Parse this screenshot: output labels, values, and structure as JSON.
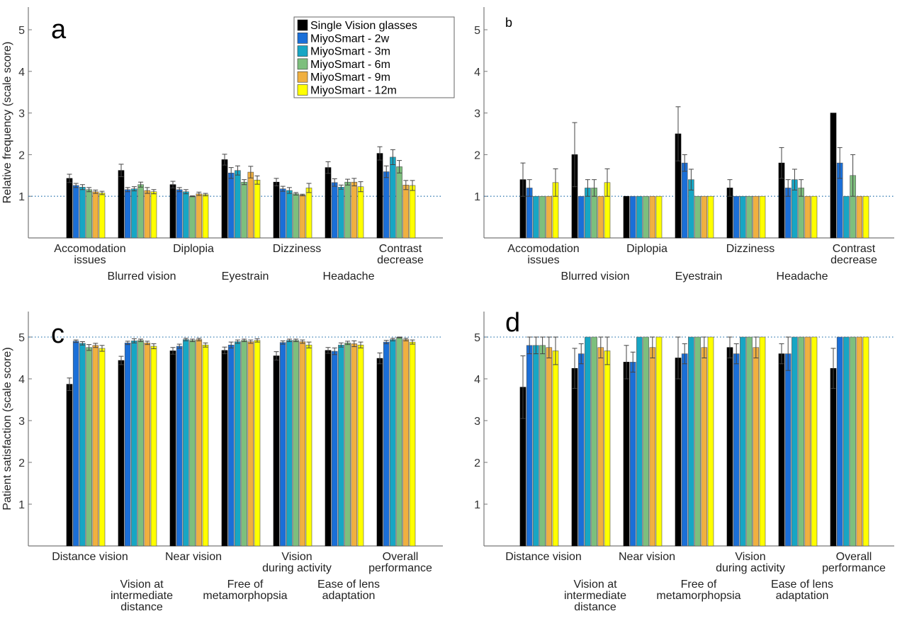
{
  "colors": [
    "#000000",
    "#1a6fd8",
    "#17a6c4",
    "#7dbf7d",
    "#f0b040",
    "#ffff00"
  ],
  "reference_line_color": "#3a7fb5",
  "chart_data": [
    {
      "type": "bar",
      "panel_label": "a",
      "ylabel": "Relative frequency (scale score)",
      "ylim": [
        0,
        5.5
      ],
      "yticks": [
        1,
        2,
        3,
        4,
        5
      ],
      "reference_line": 1,
      "legend": "top-right",
      "categories": [
        "Accomodation\nissues",
        "Blurred vision",
        "Diplopia",
        "Eyestrain",
        "Dizziness",
        "Headache",
        "Contrast\ndecrease"
      ],
      "series": [
        {
          "name": "Single Vision glasses",
          "values": [
            1.43,
            1.62,
            1.28,
            1.88,
            1.34,
            1.69,
            2.03
          ],
          "errors": [
            0.1,
            0.15,
            0.08,
            0.13,
            0.09,
            0.14,
            0.16
          ]
        },
        {
          "name": "MiyoSmart - 2w",
          "values": [
            1.26,
            1.16,
            1.16,
            1.56,
            1.18,
            1.33,
            1.59
          ],
          "errors": [
            0.05,
            0.05,
            0.05,
            0.13,
            0.06,
            0.09,
            0.14
          ]
        },
        {
          "name": "MiyoSmart - 3m",
          "values": [
            1.22,
            1.18,
            1.11,
            1.62,
            1.14,
            1.22,
            1.94
          ],
          "errors": [
            0.06,
            0.05,
            0.05,
            0.11,
            0.07,
            0.05,
            0.18
          ]
        },
        {
          "name": "MiyoSmart - 6m",
          "values": [
            1.16,
            1.28,
            1.0,
            1.34,
            1.06,
            1.34,
            1.71
          ],
          "errors": [
            0.05,
            0.06,
            0.01,
            0.06,
            0.03,
            0.07,
            0.15
          ]
        },
        {
          "name": "MiyoSmart - 9m",
          "values": [
            1.11,
            1.14,
            1.06,
            1.58,
            1.03,
            1.34,
            1.27
          ],
          "errors": [
            0.04,
            0.07,
            0.04,
            0.14,
            0.02,
            0.09,
            0.11
          ]
        },
        {
          "name": "MiyoSmart - 12m",
          "values": [
            1.08,
            1.11,
            1.04,
            1.39,
            1.2,
            1.23,
            1.26
          ],
          "errors": [
            0.04,
            0.05,
            0.03,
            0.1,
            0.11,
            0.12,
            0.12
          ]
        }
      ]
    },
    {
      "type": "bar",
      "panel_label": "b",
      "ylim": [
        0,
        5.5
      ],
      "yticks": [
        1,
        2,
        3,
        4,
        5
      ],
      "reference_line": 1,
      "categories": [
        "Accomodation\nissues",
        "Blurred vision",
        "Diplopia",
        "Eyestrain",
        "Dizziness",
        "Headache",
        "Contrast\ndecrease"
      ],
      "series": [
        {
          "name": "Single Vision glasses",
          "values": [
            1.4,
            2.0,
            1.0,
            2.5,
            1.2,
            1.8,
            3.0
          ],
          "errors": [
            0.4,
            0.77,
            0,
            0.65,
            0.2,
            0.37,
            0
          ]
        },
        {
          "name": "MiyoSmart - 2w",
          "values": [
            1.2,
            1.0,
            1.0,
            1.8,
            1.0,
            1.2,
            1.8
          ],
          "errors": [
            0.2,
            0,
            0,
            0.2,
            0,
            0.2,
            0.37
          ]
        },
        {
          "name": "MiyoSmart - 3m",
          "values": [
            1.0,
            1.2,
            1.0,
            1.4,
            1.0,
            1.4,
            1.0
          ],
          "errors": [
            0,
            0.2,
            0,
            0.25,
            0,
            0.25,
            0
          ]
        },
        {
          "name": "MiyoSmart - 6m",
          "values": [
            1.0,
            1.2,
            1.0,
            1.0,
            1.0,
            1.2,
            1.5
          ],
          "errors": [
            0,
            0.2,
            0,
            0,
            0,
            0.2,
            0.5
          ]
        },
        {
          "name": "MiyoSmart - 9m",
          "values": [
            1.0,
            1.0,
            1.0,
            1.0,
            1.0,
            1.0,
            1.0
          ],
          "errors": [
            0,
            0,
            0,
            0,
            0,
            0,
            0
          ]
        },
        {
          "name": "MiyoSmart - 12m",
          "values": [
            1.33,
            1.33,
            1.0,
            1.0,
            1.0,
            1.0,
            1.0
          ],
          "errors": [
            0.33,
            0.33,
            0,
            0,
            0,
            0,
            0
          ]
        }
      ]
    },
    {
      "type": "bar",
      "panel_label": "c",
      "ylabel": "Patient satisfaction (scale score)",
      "ylim": [
        0,
        5.5
      ],
      "yticks": [
        1,
        2,
        3,
        4,
        5
      ],
      "reference_line": 5,
      "categories": [
        "Distance vision",
        "Vision at\nintermediate\ndistance",
        "Near vision",
        "Free of\nmetamorphopsia",
        "Vision\nduring activity",
        "Ease of lens\nadaptation",
        "Overall\nperformance"
      ],
      "series": [
        {
          "name": "Single Vision glasses",
          "values": [
            3.87,
            4.44,
            4.67,
            4.68,
            4.55,
            4.68,
            4.49
          ],
          "errors": [
            0.15,
            0.1,
            0.08,
            0.08,
            0.1,
            0.07,
            0.13
          ]
        },
        {
          "name": "MiyoSmart - 2w",
          "values": [
            4.9,
            4.86,
            4.78,
            4.81,
            4.87,
            4.66,
            4.88
          ],
          "errors": [
            0.03,
            0.04,
            0.05,
            0.07,
            0.04,
            0.08,
            0.04
          ]
        },
        {
          "name": "MiyoSmart - 3m",
          "values": [
            4.85,
            4.91,
            4.94,
            4.89,
            4.92,
            4.81,
            4.94
          ],
          "errors": [
            0.04,
            0.05,
            0.03,
            0.04,
            0.03,
            0.05,
            0.03
          ]
        },
        {
          "name": "MiyoSmart - 6m",
          "values": [
            4.75,
            4.92,
            4.92,
            4.92,
            4.92,
            4.86,
            4.99
          ],
          "errors": [
            0.07,
            0.03,
            0.03,
            0.03,
            0.03,
            0.04,
            0.01
          ]
        },
        {
          "name": "MiyoSmart - 9m",
          "values": [
            4.8,
            4.86,
            4.94,
            4.89,
            4.89,
            4.84,
            4.94
          ],
          "errors": [
            0.05,
            0.04,
            0.03,
            0.04,
            0.04,
            0.07,
            0.03
          ]
        },
        {
          "name": "MiyoSmart - 12m",
          "values": [
            4.73,
            4.78,
            4.81,
            4.92,
            4.81,
            4.81,
            4.88
          ],
          "errors": [
            0.07,
            0.06,
            0.05,
            0.04,
            0.07,
            0.07,
            0.05
          ]
        }
      ]
    },
    {
      "type": "bar",
      "panel_label": "d",
      "ylim": [
        0,
        5.5
      ],
      "yticks": [
        1,
        2,
        3,
        4,
        5
      ],
      "reference_line": 5,
      "categories": [
        "Distance vision",
        "Vision at\nintermediate\ndistance",
        "Near vision",
        "Free of\nmetamorphopsia",
        "Vision\nduring activity",
        "Ease of lens\nadaptation",
        "Overall\nperformance"
      ],
      "series": [
        {
          "name": "Single Vision glasses",
          "values": [
            3.8,
            4.25,
            4.4,
            4.5,
            4.75,
            4.6,
            4.25
          ],
          "errors": [
            0.75,
            0.48,
            0.4,
            0.5,
            0.25,
            0.24,
            0.48
          ]
        },
        {
          "name": "MiyoSmart - 2w",
          "values": [
            4.8,
            4.6,
            4.4,
            4.6,
            4.6,
            4.6,
            5.0
          ],
          "errors": [
            0.2,
            0.24,
            0.24,
            0.24,
            0.24,
            0.4,
            0
          ]
        },
        {
          "name": "MiyoSmart - 3m",
          "values": [
            4.8,
            5.0,
            5.0,
            5.0,
            5.0,
            5.0,
            5.0
          ],
          "errors": [
            0.2,
            0,
            0,
            0,
            0,
            0,
            0
          ]
        },
        {
          "name": "MiyoSmart - 6m",
          "values": [
            4.8,
            5.0,
            5.0,
            5.0,
            5.0,
            5.0,
            5.0
          ],
          "errors": [
            0.2,
            0,
            0,
            0,
            0,
            0,
            0
          ]
        },
        {
          "name": "MiyoSmart - 9m",
          "values": [
            4.75,
            4.75,
            4.75,
            4.75,
            4.75,
            5.0,
            5.0
          ],
          "errors": [
            0.25,
            0.25,
            0.25,
            0.25,
            0.25,
            0,
            0
          ]
        },
        {
          "name": "MiyoSmart - 12m",
          "values": [
            4.67,
            4.67,
            5.0,
            5.0,
            5.0,
            5.0,
            5.0
          ],
          "errors": [
            0.33,
            0.33,
            0,
            0,
            0,
            0,
            0
          ]
        }
      ]
    }
  ]
}
